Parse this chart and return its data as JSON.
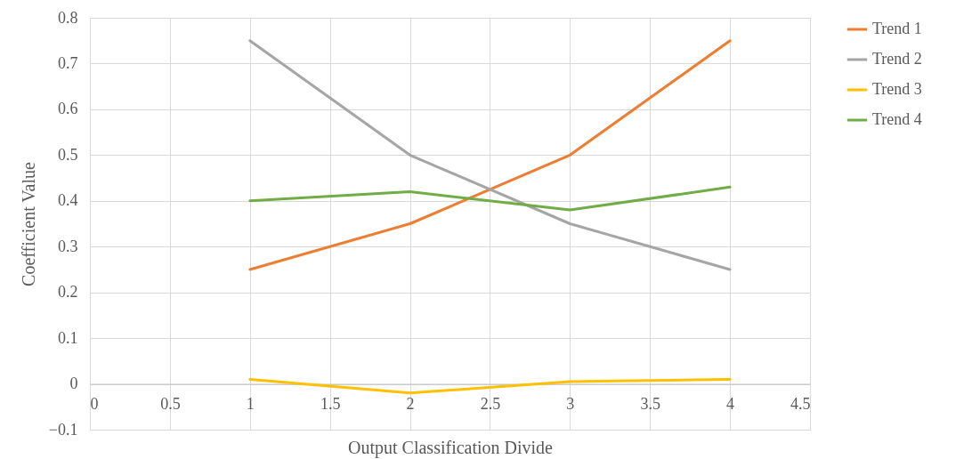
{
  "chart_data": {
    "type": "line",
    "xlabel": "Output Classification Divide",
    "ylabel": "Coefficient Value",
    "x": [
      1,
      2,
      3,
      4
    ],
    "series": [
      {
        "name": "Trend 1",
        "color": "#ed7d31",
        "values": [
          0.25,
          0.35,
          0.5,
          0.75
        ]
      },
      {
        "name": "Trend 2",
        "color": "#a5a5a5",
        "values": [
          0.75,
          0.5,
          0.35,
          0.25
        ]
      },
      {
        "name": "Trend 3",
        "color": "#ffc000",
        "values": [
          0.01,
          -0.02,
          0.005,
          0.01
        ]
      },
      {
        "name": "Trend 4",
        "color": "#70ad47",
        "values": [
          0.4,
          0.42,
          0.38,
          0.43
        ]
      }
    ],
    "xlim": [
      0,
      4.5
    ],
    "xticks": [
      0,
      0.5,
      1,
      1.5,
      2,
      2.5,
      3,
      3.5,
      4,
      4.5
    ],
    "ylim": [
      -0.1,
      0.8
    ],
    "yticks": [
      -0.1,
      0,
      0.1,
      0.2,
      0.3,
      0.4,
      0.5,
      0.6,
      0.7,
      0.8
    ],
    "grid": true,
    "legend": "right",
    "marker": "none",
    "line_style": "solid"
  }
}
